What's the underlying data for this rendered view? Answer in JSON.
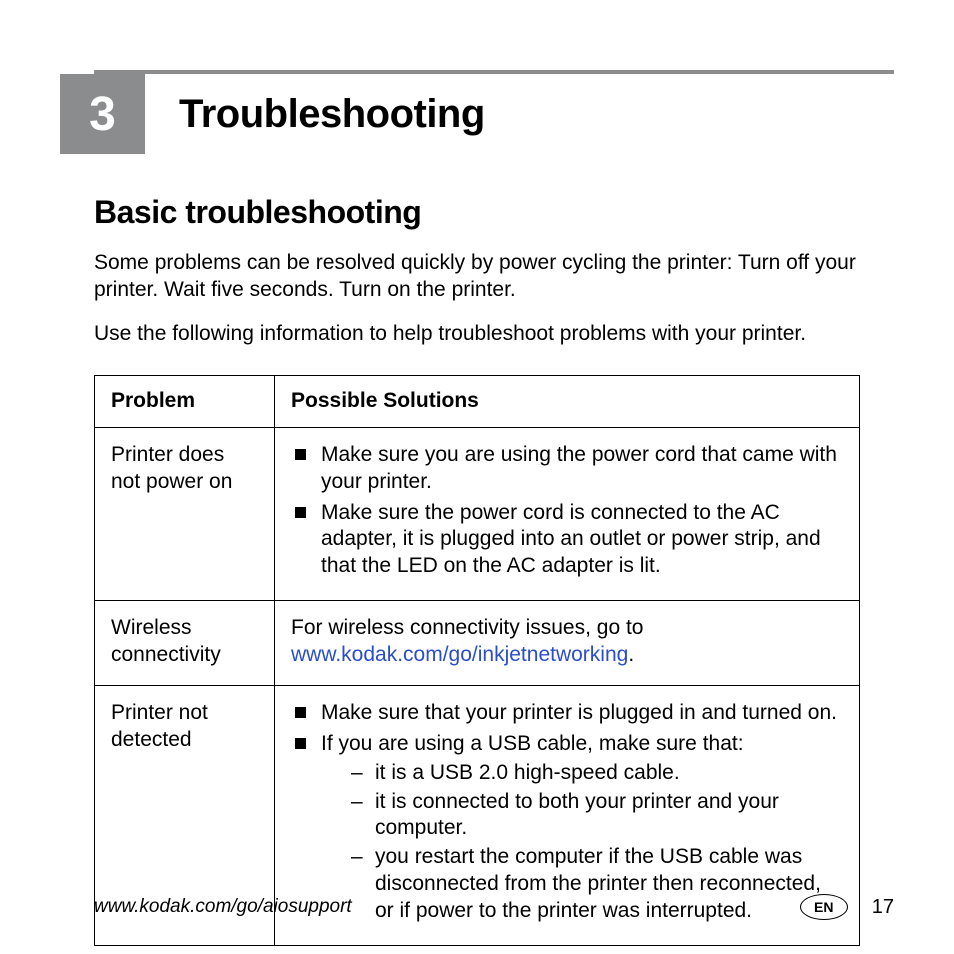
{
  "colors": {
    "chapter_block_bg": "#8a8c8e",
    "chapter_block_fg": "#ffffff",
    "link_color": "#2a4eca",
    "rule_color": "#8a8c8e"
  },
  "chapter": {
    "number": "3",
    "title": "Troubleshooting"
  },
  "section": {
    "title": "Basic troubleshooting",
    "intro1": "Some problems can be resolved quickly by power cycling the printer: Turn off your printer. Wait five seconds. Turn on the printer.",
    "intro2": "Use the following information to help troubleshoot problems with your printer."
  },
  "table": {
    "headers": {
      "problem": "Problem",
      "solutions": "Possible Solutions"
    },
    "rows": [
      {
        "problem": "Printer does not power on",
        "bullets": [
          "Make sure you are using the power cord that came with your printer.",
          "Make sure the power cord is connected to the AC adapter, it is plugged into an outlet or power strip, and that the LED on the AC adapter is lit."
        ]
      },
      {
        "problem": "Wireless connectivity",
        "text_prefix": "For wireless connectivity issues, go to ",
        "link_text": "www.kodak.com/go/inkjetnetworking",
        "text_suffix": "."
      },
      {
        "problem": "Printer not detected",
        "bullets": [
          "Make sure that your printer is plugged in and turned on.",
          "If you are using a USB cable, make sure that:"
        ],
        "sub_dash": [
          "it is a USB 2.0 high-speed cable.",
          "it is connected to both your printer and your computer.",
          "you restart the computer if the USB cable was disconnected from the printer then reconnected, or if power to the printer was interrupted."
        ]
      }
    ]
  },
  "footer": {
    "url": "www.kodak.com/go/aiosupport",
    "lang": "EN",
    "page": "17"
  }
}
